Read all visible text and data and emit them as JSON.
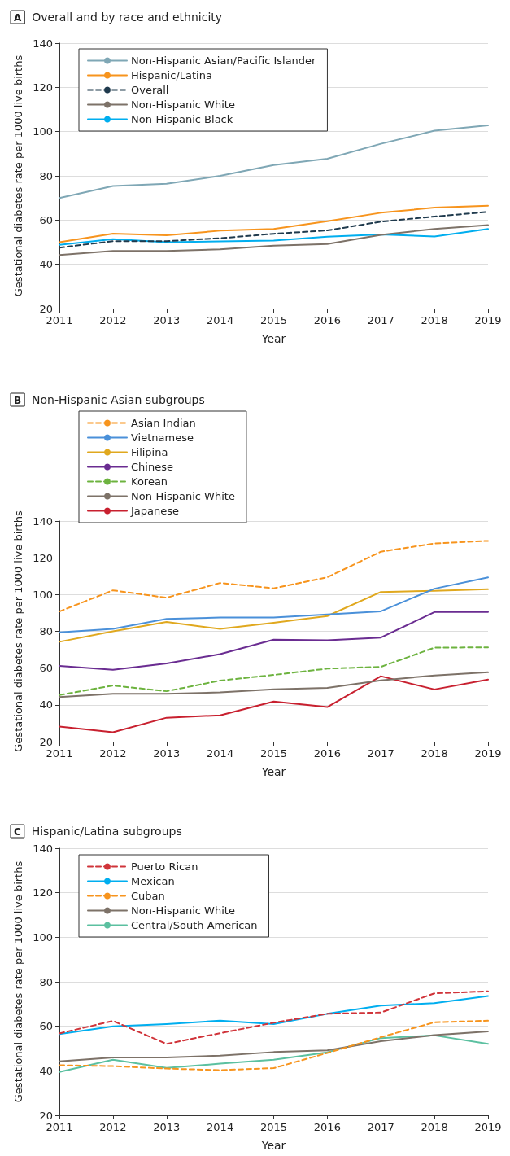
{
  "chart_data": [
    {
      "type": "line",
      "title": "Overall and by race and ethnicity",
      "annotations": [
        "A"
      ],
      "xlabel": "Year",
      "ylabel": "Gestational diabetes rate per 1000 live births",
      "x": [
        2011,
        2012,
        2013,
        2014,
        2015,
        2016,
        2017,
        2018,
        2019
      ],
      "xlim": [
        2011,
        2019
      ],
      "xticks": [
        2011,
        2012,
        2013,
        2014,
        2015,
        2016,
        2017,
        2018,
        2019
      ],
      "ylim": [
        20,
        140
      ],
      "yticks": [
        20,
        40,
        60,
        80,
        100,
        120,
        140
      ],
      "grid": "y",
      "legend": "top left",
      "marker": "none",
      "series": [
        {
          "name": "Non-Hispanic Asian/Pacific Islander",
          "color": "#7fa7b5",
          "values": [
            70,
            75.4,
            76.4,
            80,
            84.9,
            87.7,
            94.5,
            100.4,
            102.8
          ]
        },
        {
          "name": "Hispanic/Latina",
          "color": "#f7941d",
          "values": [
            50,
            53.9,
            53.1,
            55.2,
            56,
            59.5,
            63.3,
            65.6,
            66.5
          ]
        },
        {
          "name": "Overall",
          "color": "#1f3a4d",
          "line_style": "dashed",
          "values": [
            47.5,
            50.5,
            50.5,
            51.8,
            53.8,
            55.3,
            59.3,
            61.6,
            63.7
          ]
        },
        {
          "name": "Non-Hispanic White",
          "color": "#7d7268",
          "values": [
            44.2,
            46,
            46,
            46.8,
            48.4,
            49.2,
            53.3,
            56,
            57.7
          ]
        },
        {
          "name": "Non-Hispanic Black",
          "color": "#00aeef",
          "values": [
            48.8,
            51.4,
            50,
            50.4,
            50.7,
            52.5,
            53.5,
            52.6,
            56
          ]
        }
      ]
    },
    {
      "type": "line",
      "title": "Non-Hispanic Asian subgroups",
      "annotations": [
        "B"
      ],
      "xlabel": "Year",
      "ylabel": "Gestational diabetes rate per 1000 live births",
      "x": [
        2011,
        2012,
        2013,
        2014,
        2015,
        2016,
        2017,
        2018,
        2019
      ],
      "xlim": [
        2011,
        2019
      ],
      "xticks": [
        2011,
        2012,
        2013,
        2014,
        2015,
        2016,
        2017,
        2018,
        2019
      ],
      "ylim": [
        20,
        140
      ],
      "yticks": [
        20,
        40,
        60,
        80,
        100,
        120,
        140
      ],
      "grid": "y",
      "legend": "top left",
      "marker": "none",
      "series": [
        {
          "name": "Asian Indian",
          "color": "#f7941d",
          "line_style": "dashed",
          "values": [
            90.8,
            102.3,
            98.3,
            106.3,
            103.4,
            109.4,
            123.3,
            127.8,
            129.2
          ]
        },
        {
          "name": "Vietnamese",
          "color": "#4a90d9",
          "values": [
            79.5,
            81.3,
            86.8,
            87.5,
            87.5,
            89.2,
            90.9,
            103.2,
            109.3
          ]
        },
        {
          "name": "Filipina",
          "color": "#e0a81e",
          "values": [
            74.3,
            80,
            85.1,
            81.3,
            84.7,
            88.3,
            101.4,
            102,
            102.9
          ]
        },
        {
          "name": "Chinese",
          "color": "#6a2c91",
          "values": [
            61.2,
            59.1,
            62.5,
            67.6,
            75.5,
            75.1,
            76.6,
            90.5,
            90.5
          ]
        },
        {
          "name": "Korean",
          "color": "#6db33f",
          "line_style": "dashed",
          "values": [
            45.3,
            50.5,
            47.4,
            53.2,
            56.3,
            59.7,
            60.7,
            71.1,
            71.3
          ]
        },
        {
          "name": "Non-Hispanic White",
          "color": "#7d7268",
          "values": [
            44.2,
            46,
            46,
            46.8,
            48.4,
            49.2,
            53.3,
            56,
            57.7
          ]
        },
        {
          "name": "Japanese",
          "color": "#c8202f",
          "values": [
            28.2,
            25.1,
            33,
            34.3,
            41.8,
            38.8,
            55.6,
            48.4,
            53.8
          ]
        }
      ]
    },
    {
      "type": "line",
      "title": "Hispanic/Latina subgroups",
      "annotations": [
        "C"
      ],
      "xlabel": "Year",
      "ylabel": "Gestational diabetes rate per 1000 live births",
      "x": [
        2011,
        2012,
        2013,
        2014,
        2015,
        2016,
        2017,
        2018,
        2019
      ],
      "xlim": [
        2011,
        2019
      ],
      "xticks": [
        2011,
        2012,
        2013,
        2014,
        2015,
        2016,
        2017,
        2018,
        2019
      ],
      "ylim": [
        20,
        140
      ],
      "yticks": [
        20,
        40,
        60,
        80,
        100,
        120,
        140
      ],
      "grid": "y",
      "legend": "top left",
      "marker": "none",
      "series": [
        {
          "name": "Puerto Rican",
          "color": "#d0343a",
          "line_style": "dashed",
          "values": [
            56.8,
            62.4,
            52.1,
            56.9,
            61.6,
            65.6,
            66.2,
            74.8,
            75.7
          ]
        },
        {
          "name": "Mexican",
          "color": "#00aeef",
          "values": [
            56.5,
            60,
            61,
            62.5,
            61,
            65.6,
            69.3,
            70.4,
            73.6
          ]
        },
        {
          "name": "Cuban",
          "color": "#f7941d",
          "line_style": "dashed",
          "values": [
            42.5,
            42.1,
            41,
            40.3,
            41.2,
            48,
            55.1,
            61.8,
            62.5
          ]
        },
        {
          "name": "Non-Hispanic White",
          "color": "#7d7268",
          "values": [
            44.2,
            46,
            46,
            46.8,
            48.4,
            49.2,
            53.3,
            56,
            57.7
          ]
        },
        {
          "name": "Central/South American",
          "color": "#5bc0a0",
          "values": [
            39.5,
            45,
            41.3,
            43.2,
            45,
            48.3,
            54.7,
            55.9,
            52.1
          ]
        }
      ]
    }
  ]
}
